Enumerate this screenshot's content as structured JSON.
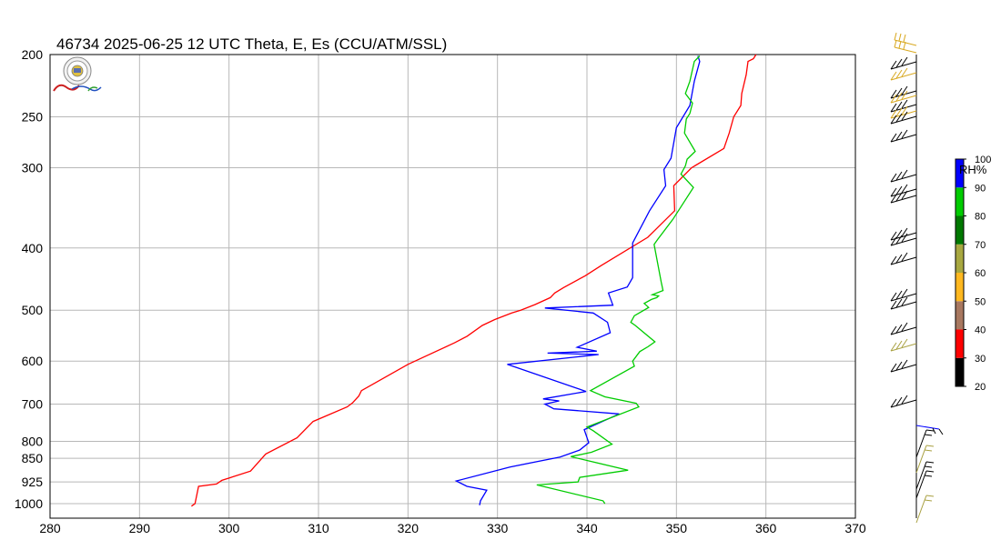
{
  "chart_data": {
    "type": "line",
    "title": "46734  2025-06-25 12 UTC  Theta, E, Es (CCU/ATM/SSL)",
    "x_axis": {
      "scale": "linear",
      "range": [
        280,
        370
      ],
      "ticks": [
        280,
        290,
        300,
        310,
        320,
        330,
        340,
        350,
        360,
        370
      ]
    },
    "y_axis": {
      "scale": "log",
      "reversed": true,
      "unit": "hPa",
      "range": [
        1015,
        200
      ],
      "ticks": [
        200,
        250,
        300,
        400,
        500,
        600,
        700,
        800,
        850,
        925,
        1000
      ]
    },
    "grid": true,
    "series": [
      {
        "name": "",
        "color": "#ff0000",
        "points": [
          [
            295.8,
            1009
          ],
          [
            296.2,
            1000
          ],
          [
            296.6,
            940
          ],
          [
            298.6,
            932
          ],
          [
            299.2,
            920
          ],
          [
            302.4,
            890
          ],
          [
            304.1,
            837
          ],
          [
            307.6,
            790
          ],
          [
            309.4,
            745
          ],
          [
            313.2,
            707
          ],
          [
            313.8,
            697
          ],
          [
            314.5,
            680
          ],
          [
            314.8,
            667
          ],
          [
            320.0,
            607
          ],
          [
            325.2,
            562
          ],
          [
            326.6,
            549
          ],
          [
            328.3,
            528
          ],
          [
            329.7,
            517
          ],
          [
            331.6,
            505
          ],
          [
            332.6,
            500
          ],
          [
            334.2,
            490
          ],
          [
            335.9,
            478
          ],
          [
            336.4,
            470
          ],
          [
            337.4,
            461
          ],
          [
            339.8,
            442
          ],
          [
            341.6,
            426
          ],
          [
            346.8,
            385
          ],
          [
            349.8,
            350
          ],
          [
            349.7,
            320
          ],
          [
            351.7,
            300
          ],
          [
            355.3,
            280
          ],
          [
            355.9,
            265
          ],
          [
            356.4,
            250
          ],
          [
            357.2,
            240
          ],
          [
            357.3,
            230
          ],
          [
            357.8,
            215
          ],
          [
            358.0,
            205
          ],
          [
            358.6,
            203
          ],
          [
            358.9,
            200
          ]
        ]
      },
      {
        "name": "",
        "color": "#0000ff",
        "points": [
          [
            328.0,
            1006
          ],
          [
            328.1,
            990
          ],
          [
            328.8,
            953
          ],
          [
            326.6,
            940
          ],
          [
            325.4,
            922
          ],
          [
            331.4,
            877
          ],
          [
            337.0,
            846
          ],
          [
            339.2,
            825
          ],
          [
            340.2,
            804
          ],
          [
            339.7,
            767
          ],
          [
            343.6,
            725
          ],
          [
            336.3,
            712
          ],
          [
            335.3,
            700
          ],
          [
            336.9,
            692
          ],
          [
            335.1,
            687
          ],
          [
            339.9,
            669
          ],
          [
            331.1,
            607
          ],
          [
            341.3,
            586
          ],
          [
            335.6,
            583
          ],
          [
            341.1,
            579
          ],
          [
            338.9,
            571
          ],
          [
            342.6,
            542
          ],
          [
            342.3,
            522
          ],
          [
            340.7,
            505
          ],
          [
            335.3,
            496
          ],
          [
            342.9,
            491
          ],
          [
            342.4,
            470
          ],
          [
            344.5,
            460
          ],
          [
            345.1,
            445
          ],
          [
            345.1,
            393
          ],
          [
            347.0,
            350
          ],
          [
            348.8,
            320
          ],
          [
            348.6,
            302
          ],
          [
            349.4,
            290
          ],
          [
            350.0,
            260
          ],
          [
            351.5,
            240
          ],
          [
            352.0,
            220
          ],
          [
            352.6,
            205
          ],
          [
            352.4,
            201
          ]
        ]
      },
      {
        "name": "",
        "color": "#00cc00",
        "points": [
          [
            342.0,
            1000
          ],
          [
            341.8,
            990
          ],
          [
            334.4,
            935
          ],
          [
            339.0,
            925
          ],
          [
            339.2,
            910
          ],
          [
            344.6,
            887
          ],
          [
            338.2,
            845
          ],
          [
            340.5,
            832
          ],
          [
            342.8,
            808
          ],
          [
            340.7,
            770
          ],
          [
            340.0,
            760
          ],
          [
            345.8,
            707
          ],
          [
            345.5,
            698
          ],
          [
            342.0,
            682
          ],
          [
            340.4,
            667
          ],
          [
            345.3,
            611
          ],
          [
            345.1,
            600
          ],
          [
            345.9,
            580
          ],
          [
            346.8,
            570
          ],
          [
            347.6,
            560
          ],
          [
            345.4,
            528
          ],
          [
            344.9,
            522
          ],
          [
            345.3,
            510
          ],
          [
            346.9,
            495
          ],
          [
            346.4,
            488
          ],
          [
            347.2,
            481
          ],
          [
            347.8,
            478
          ],
          [
            348.0,
            475
          ],
          [
            347.3,
            473
          ],
          [
            348.5,
            466
          ],
          [
            348.3,
            452
          ],
          [
            347.5,
            395
          ],
          [
            347.9,
            388
          ],
          [
            349.6,
            361
          ],
          [
            351.9,
            322
          ],
          [
            350.5,
            307
          ],
          [
            351.0,
            298
          ],
          [
            351.2,
            291
          ],
          [
            352.1,
            283
          ],
          [
            350.9,
            265
          ],
          [
            351.1,
            252
          ],
          [
            351.5,
            247
          ],
          [
            351.8,
            238
          ],
          [
            351.0,
            230
          ],
          [
            351.5,
            220
          ],
          [
            352.0,
            205
          ],
          [
            352.6,
            201
          ]
        ]
      }
    ],
    "rh_legend": {
      "label": "RH%",
      "ticks": [
        20,
        30,
        40,
        50,
        60,
        70,
        80,
        90,
        100
      ],
      "colors": [
        "#000000",
        "#ff0000",
        "#a87860",
        "#ffb820",
        "#a8a840",
        "#007800",
        "#00cc00",
        "#0000ff"
      ]
    },
    "wind_barbs": {
      "colors": {
        "default": "#000000",
        "olive": "#a8a040",
        "gold": "#d8a820",
        "blue": "#0000ff"
      }
    }
  }
}
